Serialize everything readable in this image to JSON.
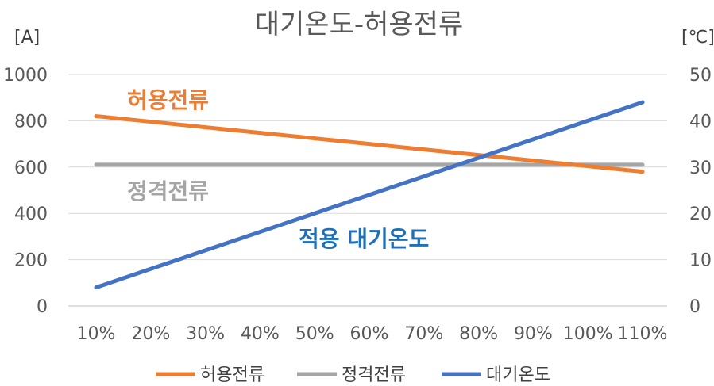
{
  "chart_data": {
    "type": "line",
    "title": "대기온도-허용전류",
    "y_left_unit": "[A]",
    "y_right_unit": "[℃]",
    "categories": [
      "10%",
      "20%",
      "30%",
      "40%",
      "50%",
      "60%",
      "70%",
      "80%",
      "90%",
      "100%",
      "110%"
    ],
    "y_left_ticks": [
      "0",
      "200",
      "400",
      "600",
      "800",
      "1000"
    ],
    "y_right_ticks": [
      "0",
      "10",
      "20",
      "30",
      "40",
      "50"
    ],
    "ylim_left": [
      0,
      1000
    ],
    "ylim_right": [
      0,
      50
    ],
    "grid": true,
    "legend_position": "bottom",
    "series": [
      {
        "name": "허용전류",
        "axis": "left",
        "color": "#ED7D31",
        "values": [
          820,
          796,
          772,
          748,
          724,
          700,
          676,
          652,
          628,
          604,
          580
        ]
      },
      {
        "name": "정격전류",
        "axis": "left",
        "color": "#A5A5A5",
        "values": [
          610,
          610,
          610,
          610,
          610,
          610,
          610,
          610,
          610,
          610,
          610
        ]
      },
      {
        "name": "대기온도",
        "axis": "right",
        "color": "#4472C4",
        "values": [
          4,
          8,
          12,
          16,
          20,
          24,
          28,
          32,
          36,
          40,
          44
        ]
      }
    ],
    "annotations": [
      {
        "text": "허용전류",
        "color": "#ED7D31"
      },
      {
        "text": "정격전류",
        "color": "#A5A5A5"
      },
      {
        "text": "적용 대기온도",
        "color": "#1F6FB5"
      }
    ]
  }
}
